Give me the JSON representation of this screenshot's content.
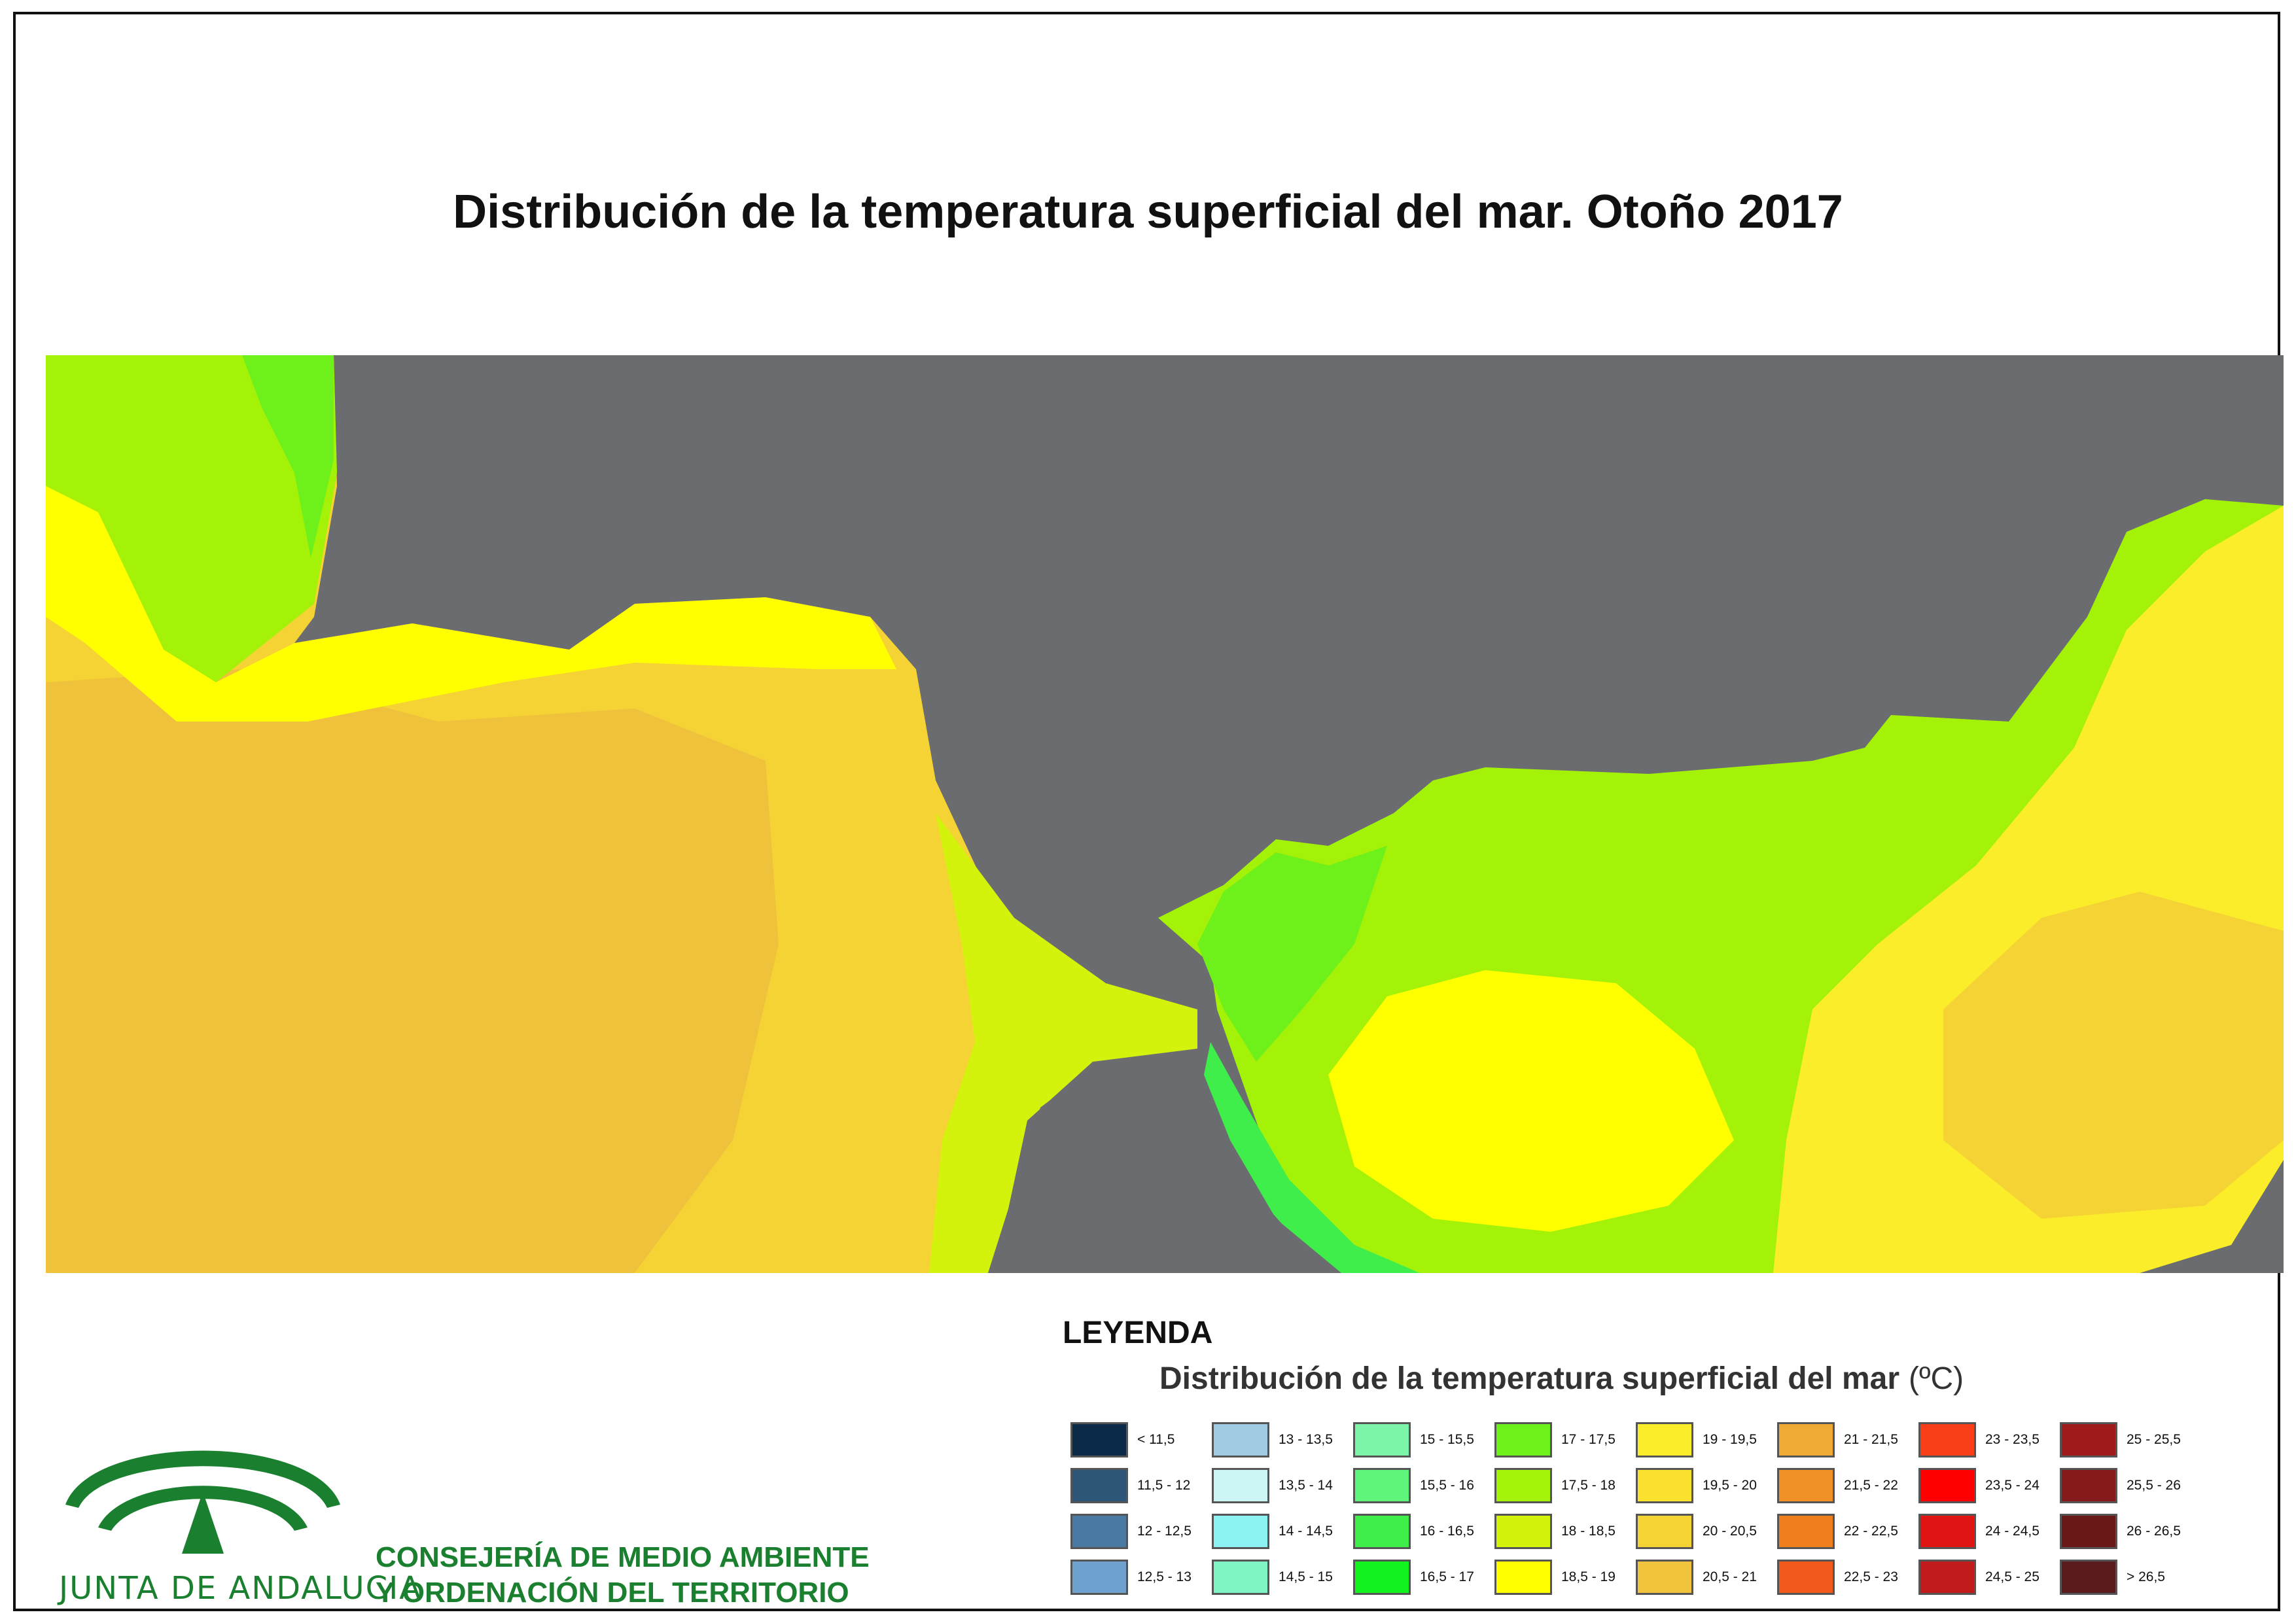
{
  "title": "Distribución de la temperatura superficial del mar. Otoño 2017",
  "legend": {
    "heading": "LEYENDA",
    "subtitle": "Distribución de la temperatura superficial del mar",
    "unit": "(ºC)",
    "classes": [
      {
        "label": "< 11,5",
        "color": "#0b2a47"
      },
      {
        "label": "11,5 - 12",
        "color": "#2c5577"
      },
      {
        "label": "12 - 12,5",
        "color": "#4a7aa3"
      },
      {
        "label": "12,5 - 13",
        "color": "#6fa2cf"
      },
      {
        "label": "13 - 13,5",
        "color": "#9fcbe2"
      },
      {
        "label": "13,5 - 14",
        "color": "#ccf5f5"
      },
      {
        "label": "14 - 14,5",
        "color": "#8cf3f2"
      },
      {
        "label": "14,5 - 15",
        "color": "#7ff5c4"
      },
      {
        "label": "15 - 15,5",
        "color": "#7df5a8"
      },
      {
        "label": "15,5 - 16",
        "color": "#5ff47a"
      },
      {
        "label": "16 - 16,5",
        "color": "#3fee4a"
      },
      {
        "label": "16,5 - 17",
        "color": "#11f21e"
      },
      {
        "label": "17 - 17,5",
        "color": "#6ef01a"
      },
      {
        "label": "17,5 - 18",
        "color": "#a3f207"
      },
      {
        "label": "18 - 18,5",
        "color": "#d4f30c"
      },
      {
        "label": "18,5 - 19",
        "color": "#ffff00"
      },
      {
        "label": "19 - 19,5",
        "color": "#fbed29"
      },
      {
        "label": "19,5 - 20",
        "color": "#f9e12e"
      },
      {
        "label": "20 - 20,5",
        "color": "#f5d335"
      },
      {
        "label": "20,5 - 21",
        "color": "#f2c33d"
      },
      {
        "label": "21 - 21,5",
        "color": "#efaa35"
      },
      {
        "label": "21,5 - 22",
        "color": "#ef9127"
      },
      {
        "label": "22 - 22,5",
        "color": "#ef7e1d"
      },
      {
        "label": "22,5 - 23",
        "color": "#f25a1c"
      },
      {
        "label": "23 - 23,5",
        "color": "#fa3e17"
      },
      {
        "label": "23,5 - 24",
        "color": "#ff0000"
      },
      {
        "label": "24 - 24,5",
        "color": "#e11414"
      },
      {
        "label": "24,5 - 25",
        "color": "#c21b1b"
      },
      {
        "label": "25 - 25,5",
        "color": "#9f1b1b"
      },
      {
        "label": "25,5 - 26",
        "color": "#861a1a"
      },
      {
        "label": "26 - 26,5",
        "color": "#6a1717"
      },
      {
        "label": "> 26,5",
        "color": "#5a1b1e"
      }
    ]
  },
  "logo": {
    "name": "JUNTA DE ANDALUCIA",
    "color": "#1a7f2e"
  },
  "consejeria": {
    "line1": "CONSEJERÍA DE MEDIO AMBIENTE",
    "line2": "Y ORDENACIÓN DEL TERRITORIO"
  },
  "map": {
    "land_color": "#6b6c70",
    "sea_colors": [
      "#f0c23c",
      "#f5d335",
      "#fbed29",
      "#ffff00",
      "#d4f30c",
      "#a3f207",
      "#6ef01a",
      "#3fee4a"
    ]
  }
}
